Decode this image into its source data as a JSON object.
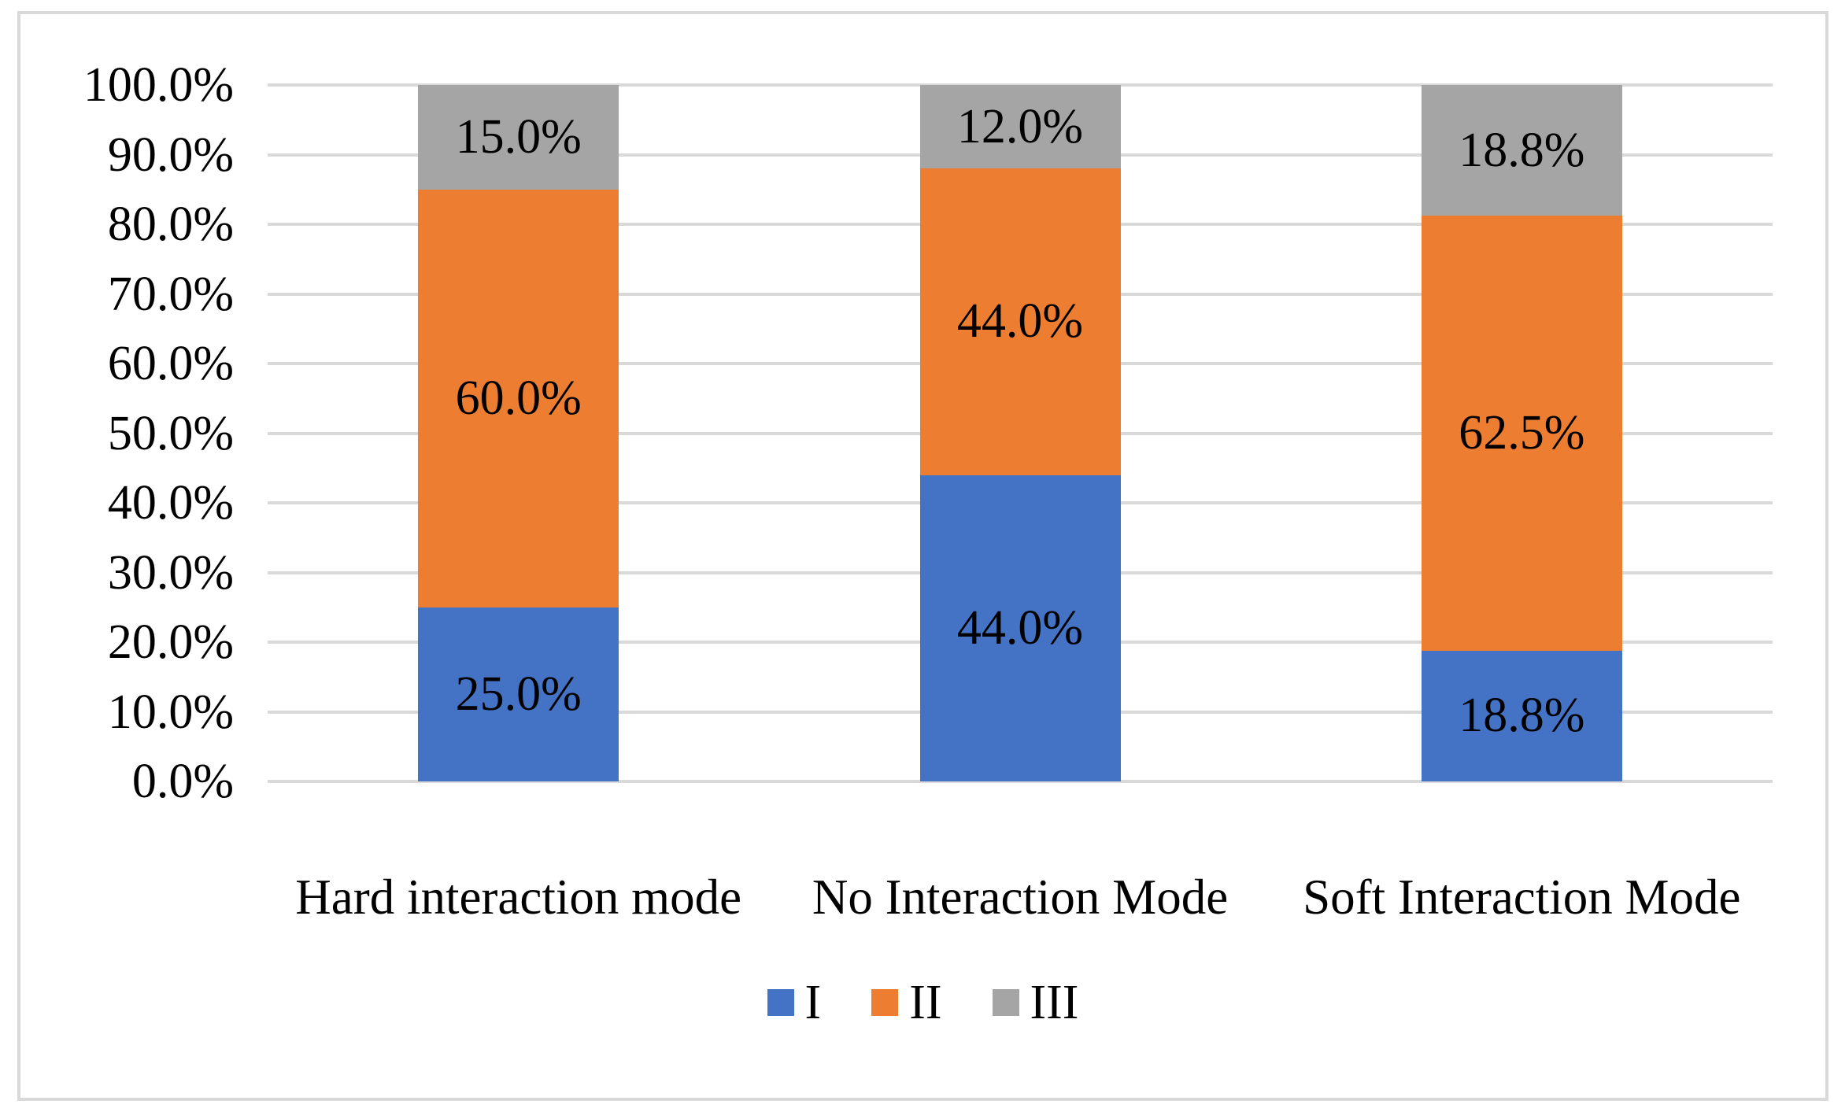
{
  "figure": {
    "background": "#FFFFFF",
    "border_color": "#D9D9D9",
    "text_color": "#000000"
  },
  "chart_data": {
    "type": "bar",
    "subtype": "stacked-100-percent-column",
    "title": "",
    "xlabel": "",
    "ylabel": "",
    "categories": [
      "Hard interaction mode",
      "No Interaction Mode",
      "Soft Interaction Mode"
    ],
    "series": [
      {
        "name": "I",
        "color": "#4472C4",
        "values": [
          25.0,
          44.0,
          18.8
        ],
        "data_labels": [
          "25.0%",
          "44.0%",
          "18.8%"
        ]
      },
      {
        "name": "II",
        "color": "#ED7D31",
        "values": [
          60.0,
          44.0,
          62.5
        ],
        "data_labels": [
          "60.0%",
          "44.0%",
          "62.5%"
        ]
      },
      {
        "name": "III",
        "color": "#A5A5A5",
        "values": [
          15.0,
          12.0,
          18.8
        ],
        "data_labels": [
          "15.0%",
          "12.0%",
          "18.8%"
        ]
      }
    ],
    "y_axis": {
      "min": 0,
      "max": 100,
      "ticks": [
        "0.0%",
        "10.0%",
        "20.0%",
        "30.0%",
        "40.0%",
        "50.0%",
        "60.0%",
        "70.0%",
        "80.0%",
        "90.0%",
        "100.0%"
      ]
    },
    "grid": true,
    "gridline_color": "#D9D9D9",
    "legend": {
      "position": "bottom"
    }
  }
}
